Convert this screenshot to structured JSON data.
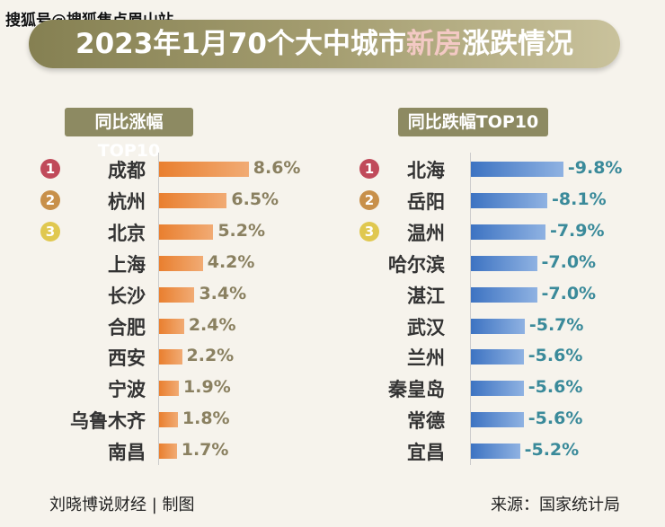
{
  "watermark": "搜狐号@搜狐焦点眉山站",
  "title": {
    "part1": "2023年1月70个大中城市",
    "highlight": "新房",
    "part2": "涨跌情况"
  },
  "footer": {
    "left": "刘晓博说财经 | 制图",
    "right": "来源：国家统计局"
  },
  "colors": {
    "rise": "#e8863a",
    "fall": "#4a7fc8",
    "rank1": "#c04a5a",
    "rank2": "#c8904a",
    "rank3": "#e0c850",
    "rise_text": "#8a8060",
    "fall_text": "#3a8a9a"
  },
  "chart_data": [
    {
      "type": "bar",
      "title": "同比涨幅TOP10",
      "ranks": [
        "1",
        "2",
        "3"
      ],
      "categories": [
        "成都",
        "杭州",
        "北京",
        "上海",
        "长沙",
        "合肥",
        "西安",
        "宁波",
        "乌鲁木齐",
        "南昌"
      ],
      "values": [
        8.6,
        6.5,
        5.2,
        4.2,
        3.4,
        2.4,
        2.2,
        1.9,
        1.8,
        1.7
      ],
      "labels": [
        "8.6%",
        "6.5%",
        "5.2%",
        "4.2%",
        "3.4%",
        "2.4%",
        "2.2%",
        "1.9%",
        "1.8%",
        "1.7%"
      ]
    },
    {
      "type": "bar",
      "title": "同比跌幅TOP10",
      "ranks": [
        "1",
        "2",
        "3"
      ],
      "categories": [
        "北海",
        "岳阳",
        "温州",
        "哈尔滨",
        "湛江",
        "武汉",
        "兰州",
        "秦皇岛",
        "常德",
        "宜昌"
      ],
      "values": [
        -9.8,
        -8.1,
        -7.9,
        -7.0,
        -7.0,
        -5.7,
        -5.6,
        -5.6,
        -5.6,
        -5.2
      ],
      "labels": [
        "-9.8%",
        "-8.1%",
        "-7.9%",
        "-7.0%",
        "-7.0%",
        "-5.7%",
        "-5.6%",
        "-5.6%",
        "-5.6%",
        "-5.2%"
      ]
    }
  ]
}
